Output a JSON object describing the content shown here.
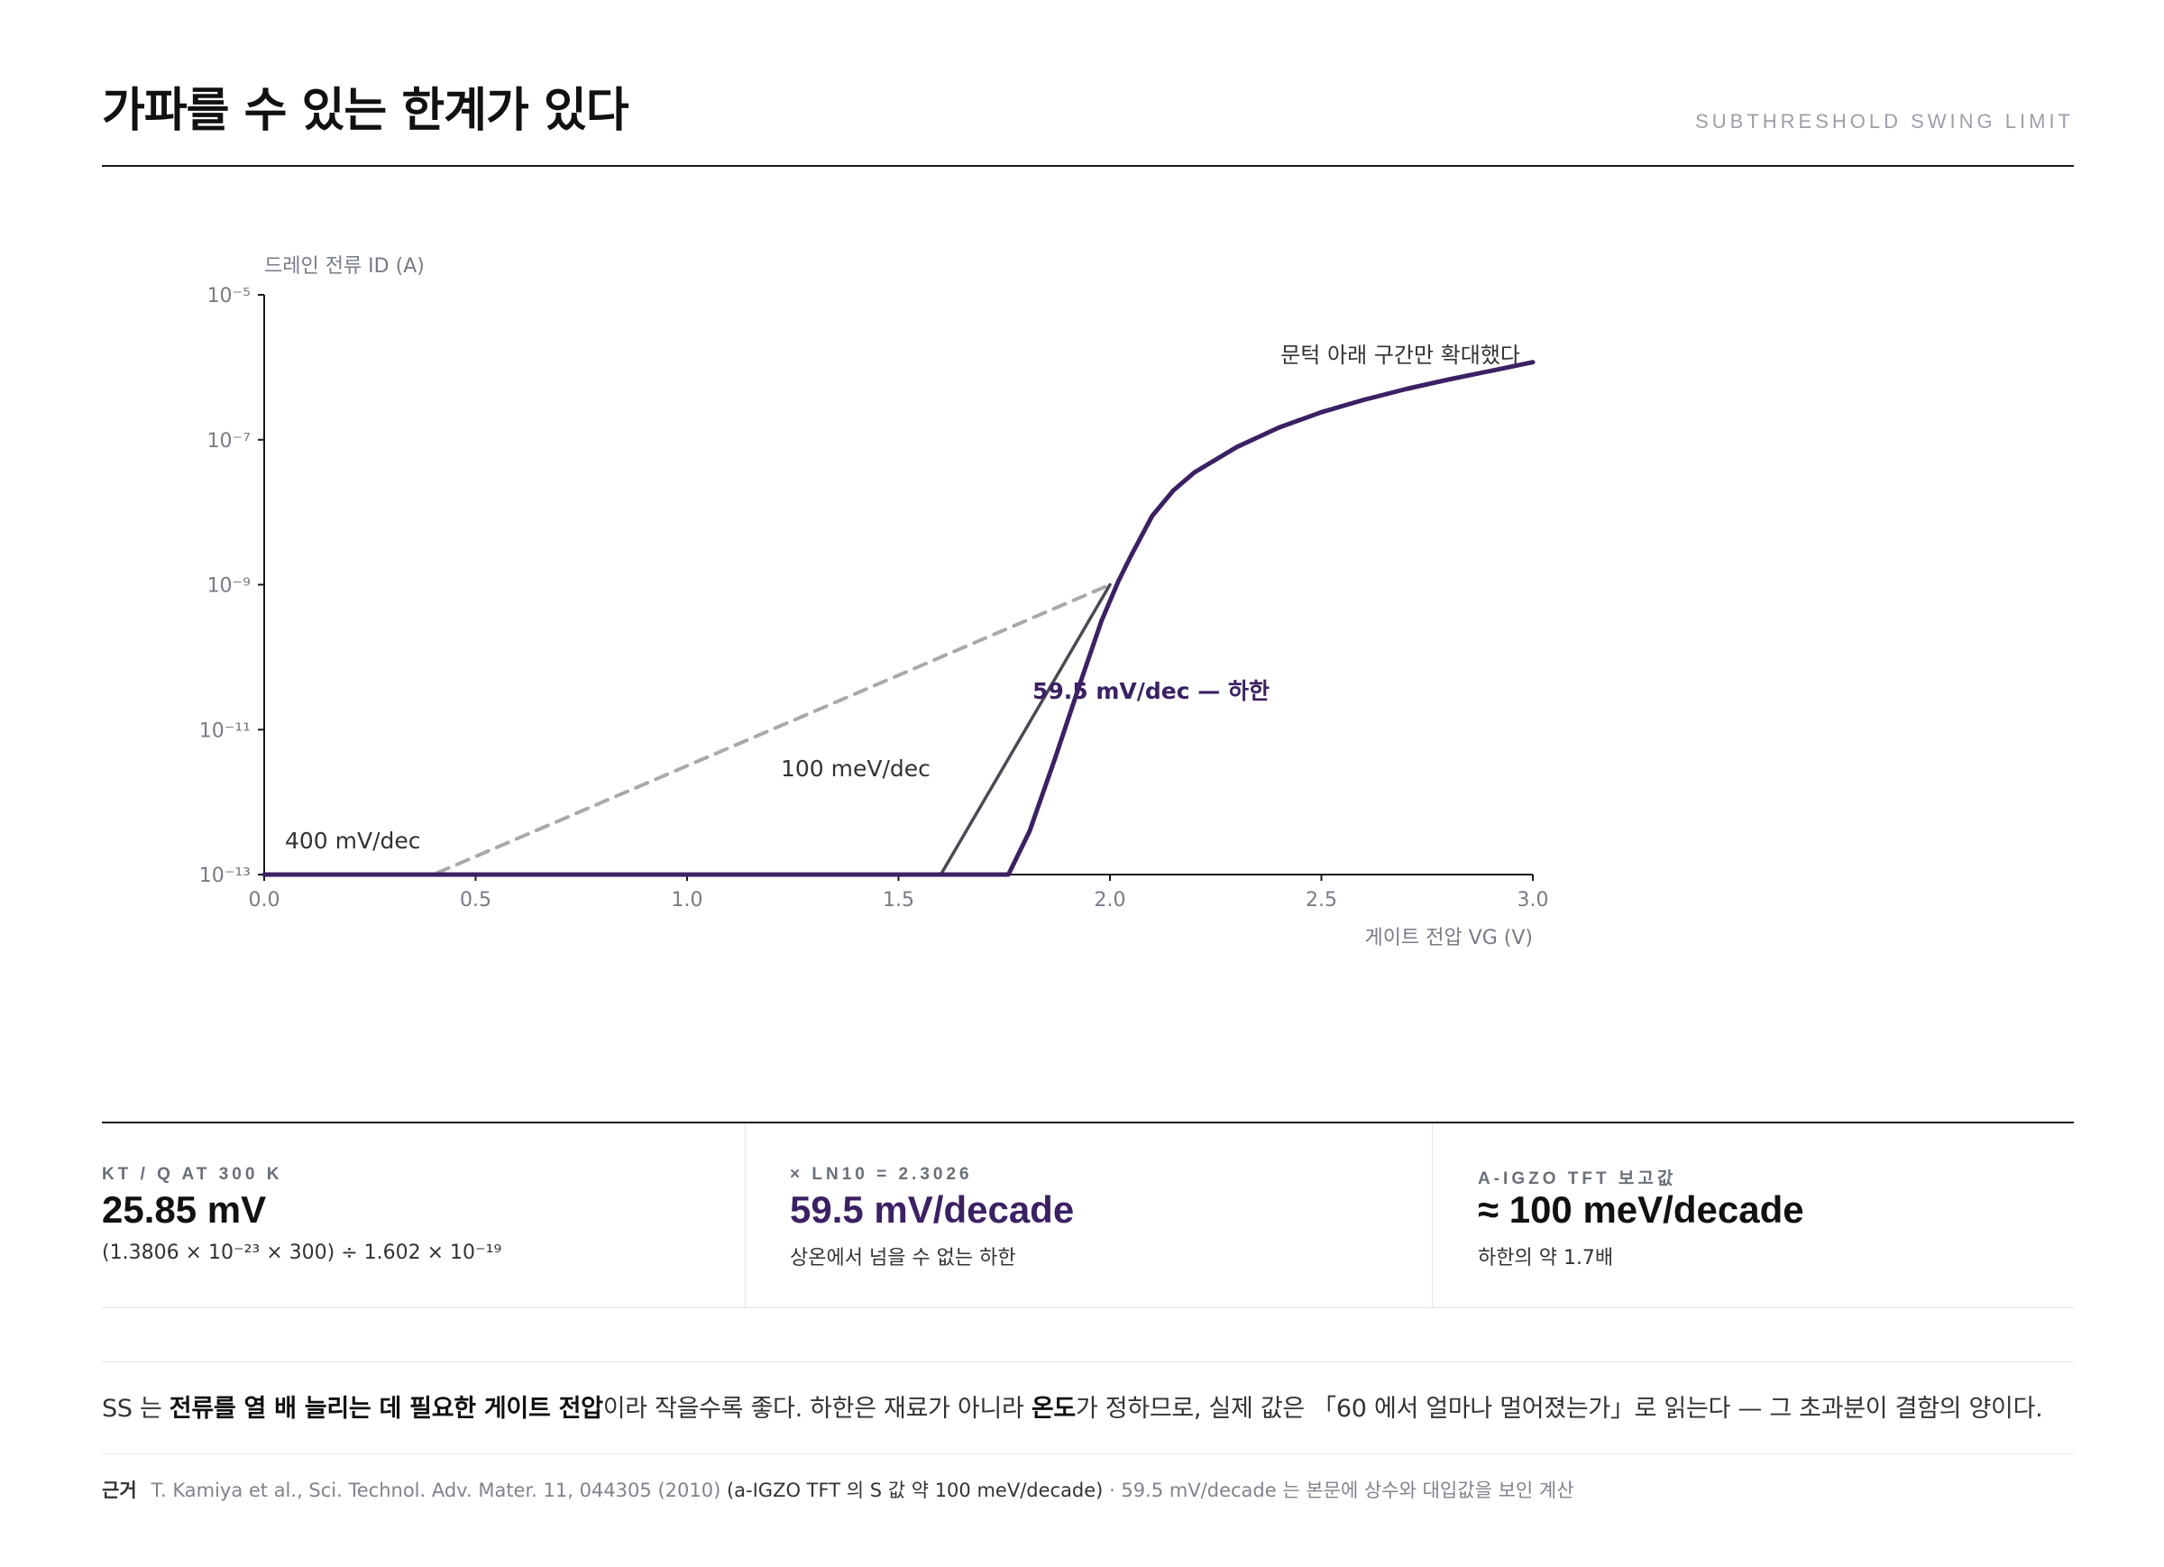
{
  "header": {
    "title": "가파를 수 있는 한계가 있다",
    "tag": "SUBTHRESHOLD SWING LIMIT"
  },
  "chart_data": {
    "type": "line",
    "title": "",
    "xlabel": "게이트 전압 VG (V)",
    "ylabel": "드레인 전류 ID (A)",
    "xlim": [
      0.0,
      3.0
    ],
    "ylim_log10": [
      -13,
      -5
    ],
    "y_scale": "log",
    "grid": false,
    "x_ticks": [
      "0.0",
      "0.5",
      "1.0",
      "1.5",
      "2.0",
      "2.5",
      "3.0"
    ],
    "x_tick_values": [
      0.0,
      0.5,
      1.0,
      1.5,
      2.0,
      2.5,
      3.0
    ],
    "y_ticks": [
      "10⁻⁵",
      "10⁻⁷",
      "10⁻⁹",
      "10⁻¹¹",
      "10⁻¹³"
    ],
    "y_tick_values": [
      -5,
      -7,
      -9,
      -11,
      -13
    ],
    "series": [
      {
        "style": "dashed",
        "color": "#a9a9ad",
        "x": [
          0.0,
          0.4,
          2.0
        ],
        "log10_y": [
          -13,
          -13,
          -9
        ]
      },
      {
        "style": "solid",
        "color": "#4a4a52",
        "x": [
          0.0,
          1.6,
          2.0
        ],
        "log10_y": [
          -13,
          -13,
          -9
        ]
      },
      {
        "style": "solid-thick",
        "color": "#3b2163",
        "x": [
          0.0,
          1.76,
          1.81,
          1.87,
          1.93,
          1.98,
          2.02,
          2.05,
          2.1,
          2.15,
          2.2,
          2.3,
          2.4,
          2.5,
          2.6,
          2.7,
          2.8,
          2.9,
          3.0
        ],
        "log10_y": [
          -13,
          -13,
          -12.4,
          -11.4,
          -10.35,
          -9.5,
          -8.95,
          -8.6,
          -8.05,
          -7.7,
          -7.45,
          -7.1,
          -6.83,
          -6.62,
          -6.45,
          -6.3,
          -6.17,
          -6.05,
          -5.93
        ]
      }
    ],
    "annotations": {
      "subset": "문턱 아래 구간만 확대했다",
      "limit": "59.5 mV/dec — 하한",
      "reported": "100 meV/dec",
      "slow": "400 mV/dec"
    }
  },
  "stats": [
    {
      "label": "KT / Q AT 300 K",
      "value": "25.85 mV",
      "note": "(1.3806 × 10⁻²³ × 300) ÷ 1.602 × 10⁻¹⁹",
      "accent": "#111111"
    },
    {
      "label": "× LN10 = 2.3026",
      "value": "59.5 mV/decade",
      "note": "상온에서 넘을 수 없는 하한",
      "accent": "#3b2163"
    },
    {
      "label": "A-IGZO TFT 보고값",
      "value": "≈ 100 meV/decade",
      "note": "하한의 약 1.7배",
      "accent": "#111111"
    }
  ],
  "explanation": {
    "p1": "SS 는 ",
    "b1": "전류를 열 배 늘리는 데 필요한 게이트 전압",
    "p2": "이라 작을수록 좋다. 하한은 재료가 아니라 ",
    "b2": "온도",
    "p3": "가 정하므로, 실제 값은 「60 에서 얼마나 멀어졌는가」로 읽는다 — 그 초과분이 결함의 양이다."
  },
  "source": {
    "label": "근거",
    "citation": "T. Kamiya et al., Sci. Technol. Adv. Mater. 11, 044305 (2010)",
    "detail": "(a-IGZO TFT 의 S 값 약 100 meV/decade)",
    "note": "· 59.5 mV/decade 는 본문에 상수와 대입값을 보인 계산"
  }
}
